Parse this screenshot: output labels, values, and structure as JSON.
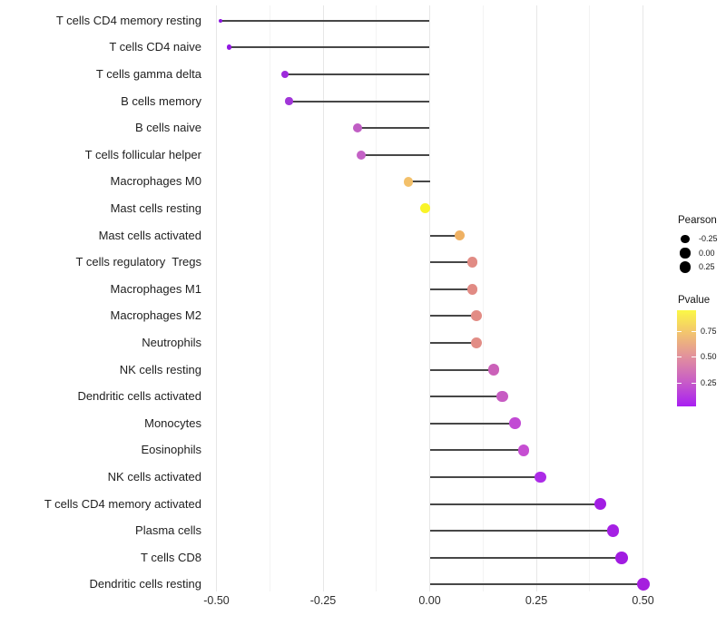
{
  "style": {
    "background": "#ffffff",
    "stem_color": "#474747",
    "grid_major_color": "#e7e7e7",
    "grid_minor_color": "#f3f3f3",
    "axis_text_color": "#2e2e2e",
    "label_text_color": "#1f1f1f",
    "legend_dot_color": "#000000"
  },
  "legend_size": {
    "title": "Pearson",
    "items": [
      {
        "label": "-0.25",
        "value": -0.25
      },
      {
        "label": "0.00",
        "value": 0.0
      },
      {
        "label": "0.25",
        "value": 0.25
      }
    ]
  },
  "legend_color": {
    "title": "Pvalue",
    "gradient_colors": [
      "#fbf846",
      "#f3c76c",
      "#e2919c",
      "#c75bc8",
      "#a81ff2"
    ],
    "gradient_stops_pct": [
      0,
      22,
      48,
      75,
      100
    ],
    "ticks": [
      {
        "label": "0.75",
        "frac_from_top": 0.217
      },
      {
        "label": "0.50",
        "frac_from_top": 0.481
      },
      {
        "label": "0.25",
        "frac_from_top": 0.755
      }
    ]
  },
  "chart_data": {
    "type": "lollipop",
    "orientation": "horizontal",
    "title": "",
    "xlabel": "",
    "ylabel": "",
    "baseline": 0,
    "xlim": [
      -0.545,
      0.55
    ],
    "x_ticks": [
      -0.5,
      -0.25,
      0.0,
      0.25,
      0.5
    ],
    "x_tick_labels": [
      "-0.50",
      "-0.25",
      "0.00",
      "0.25",
      "0.50"
    ],
    "x_minor_ticks": [
      -0.375,
      -0.125,
      0.125,
      0.375
    ],
    "grid": "vertical-only",
    "legend_position": "right",
    "size_encoding": "Pearson correlation",
    "color_encoding": "Pvalue",
    "rows": [
      {
        "label": "T cells CD4 memory resting",
        "pearson": -0.49,
        "color": "#8c15e0"
      },
      {
        "label": "T cells CD4 naive",
        "pearson": -0.47,
        "color": "#9118e2"
      },
      {
        "label": "T cells gamma delta",
        "pearson": -0.34,
        "color": "#9d2adb"
      },
      {
        "label": "B cells memory",
        "pearson": -0.33,
        "color": "#a136d8"
      },
      {
        "label": "B cells naive",
        "pearson": -0.17,
        "color": "#c05ec4"
      },
      {
        "label": "T cells follicular helper",
        "pearson": -0.16,
        "color": "#c462c6"
      },
      {
        "label": "Macrophages M0",
        "pearson": -0.05,
        "color": "#f3c06a"
      },
      {
        "label": "Mast cells resting",
        "pearson": -0.01,
        "color": "#f9f428"
      },
      {
        "label": "Mast cells activated",
        "pearson": 0.07,
        "color": "#efb163"
      },
      {
        "label": "T cells regulatory  Tregs",
        "pearson": 0.1,
        "color": "#e18b84"
      },
      {
        "label": "Macrophages M1",
        "pearson": 0.1,
        "color": "#e18b84"
      },
      {
        "label": "Macrophages M2",
        "pearson": 0.11,
        "color": "#e28c85"
      },
      {
        "label": "Neutrophils",
        "pearson": 0.11,
        "color": "#e28d86"
      },
      {
        "label": "NK cells resting",
        "pearson": 0.15,
        "color": "#cb61b9"
      },
      {
        "label": "Dendritic cells activated",
        "pearson": 0.17,
        "color": "#c75cc3"
      },
      {
        "label": "Monocytes",
        "pearson": 0.2,
        "color": "#c24ad4"
      },
      {
        "label": "Eosinophils",
        "pearson": 0.22,
        "color": "#c64ed2"
      },
      {
        "label": "NK cells activated",
        "pearson": 0.26,
        "color": "#ac2be7"
      },
      {
        "label": "T cells CD4 memory activated",
        "pearson": 0.4,
        "color": "#a21ee3"
      },
      {
        "label": "Plasma cells",
        "pearson": 0.43,
        "color": "#a520e4"
      },
      {
        "label": "T cells CD8",
        "pearson": 0.45,
        "color": "#a11ce1"
      },
      {
        "label": "Dendritic cells resting",
        "pearson": 0.5,
        "color": "#a51fde"
      }
    ]
  }
}
